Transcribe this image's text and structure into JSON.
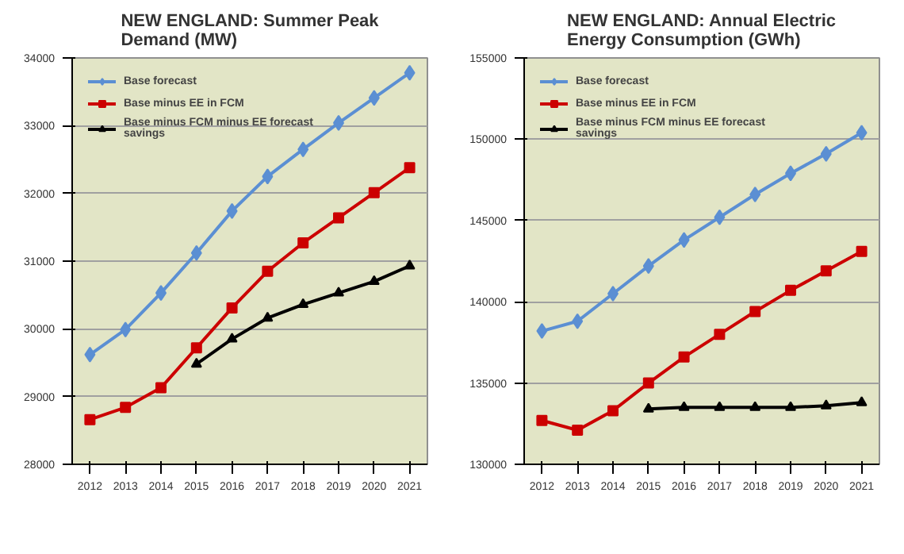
{
  "chart_data": [
    {
      "type": "line",
      "title": "NEW ENGLAND: Summer Peak Demand (MW)",
      "categories": [
        "2012",
        "2013",
        "2014",
        "2015",
        "2016",
        "2017",
        "2018",
        "2019",
        "2020",
        "2021"
      ],
      "ylim": [
        28000,
        34000
      ],
      "yticks": [
        28000,
        29000,
        30000,
        31000,
        32000,
        33000,
        34000
      ],
      "grid": "y",
      "legend": "top left",
      "series": [
        {
          "name": "Base forecast",
          "color": "#5b8fd3",
          "marker": "diamond",
          "values": [
            29620,
            29990,
            30530,
            31120,
            31740,
            32250,
            32650,
            33040,
            33410,
            33780
          ]
        },
        {
          "name": "Base minus EE in FCM",
          "color": "#cc0000",
          "marker": "square",
          "values": [
            28660,
            28840,
            29130,
            29720,
            30310,
            30850,
            31270,
            31640,
            32010,
            32380
          ]
        },
        {
          "name": "Base minus FCM minus EE forecast savings",
          "color": "#000000",
          "marker": "triangle",
          "values": [
            null,
            null,
            null,
            29480,
            29850,
            30160,
            30360,
            30530,
            30700,
            30930
          ]
        }
      ]
    },
    {
      "type": "line",
      "title": "NEW ENGLAND: Annual Electric Energy Consumption (GWh)",
      "categories": [
        "2012",
        "2013",
        "2014",
        "2015",
        "2016",
        "2017",
        "2018",
        "2019",
        "2020",
        "2021"
      ],
      "ylim": [
        130000,
        155000
      ],
      "yticks": [
        130000,
        135000,
        140000,
        145000,
        150000,
        155000
      ],
      "grid": "y",
      "legend": "top left",
      "series": [
        {
          "name": "Base forecast",
          "color": "#5b8fd3",
          "marker": "diamond",
          "values": [
            138200,
            138800,
            140500,
            142200,
            143800,
            145200,
            146600,
            147900,
            149100,
            150400
          ]
        },
        {
          "name": "Base minus EE in FCM",
          "color": "#cc0000",
          "marker": "square",
          "values": [
            132700,
            132100,
            133300,
            135000,
            136600,
            138000,
            139400,
            140700,
            141900,
            143100
          ]
        },
        {
          "name": "Base minus FCM minus EE forecast savings",
          "color": "#000000",
          "marker": "triangle",
          "values": [
            null,
            null,
            null,
            133400,
            133500,
            133500,
            133500,
            133500,
            133600,
            133800
          ]
        }
      ]
    }
  ]
}
